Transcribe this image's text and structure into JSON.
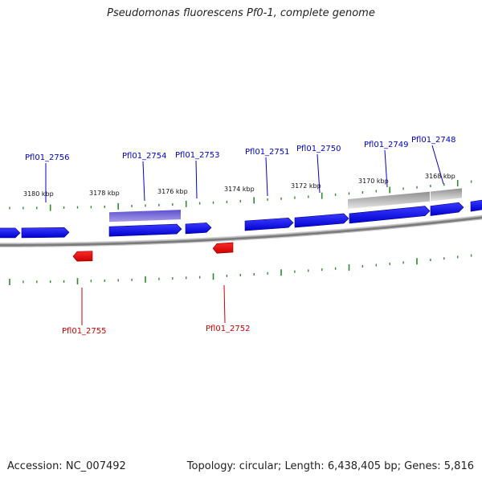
{
  "title": "Pseudomonas fluorescens Pf0-1, complete genome",
  "footer": {
    "accession_label": "Accession:",
    "accession": "NC_007492",
    "topology_label": "Topology:",
    "topology": "circular",
    "length_label": "Length:",
    "length": "6,438,405 bp",
    "genes_label": "Genes:",
    "genes": "5,816"
  },
  "colors": {
    "forward_gene": "#0000ee",
    "reverse_gene": "#ee0000",
    "selected_gene": "#6a5acd",
    "other_feature": "#bbbbbb",
    "tick": "#2e8b2e",
    "backbone": "#888888",
    "label_forward": "#0000cc",
    "label_reverse": "#cc0000"
  },
  "scale_labels": [
    {
      "text": "3180 kbp"
    },
    {
      "text": "3178 kbp"
    },
    {
      "text": "3176 kbp"
    },
    {
      "text": "3174 kbp"
    },
    {
      "text": "3172 kbp"
    },
    {
      "text": "3170 kbp"
    },
    {
      "text": "3168 kbp"
    }
  ],
  "gene_labels": [
    {
      "text": "Pfl01_2756",
      "strand": "+"
    },
    {
      "text": "Pfl01_2754",
      "strand": "+"
    },
    {
      "text": "Pfl01_2753",
      "strand": "+"
    },
    {
      "text": "Pfl01_2751",
      "strand": "+"
    },
    {
      "text": "Pfl01_2750",
      "strand": "+"
    },
    {
      "text": "Pfl01_2749",
      "strand": "+"
    },
    {
      "text": "Pfl01_2748",
      "strand": "+"
    },
    {
      "text": "Pfl01_2755",
      "strand": "-"
    },
    {
      "text": "Pfl01_2752",
      "strand": "-"
    }
  ]
}
